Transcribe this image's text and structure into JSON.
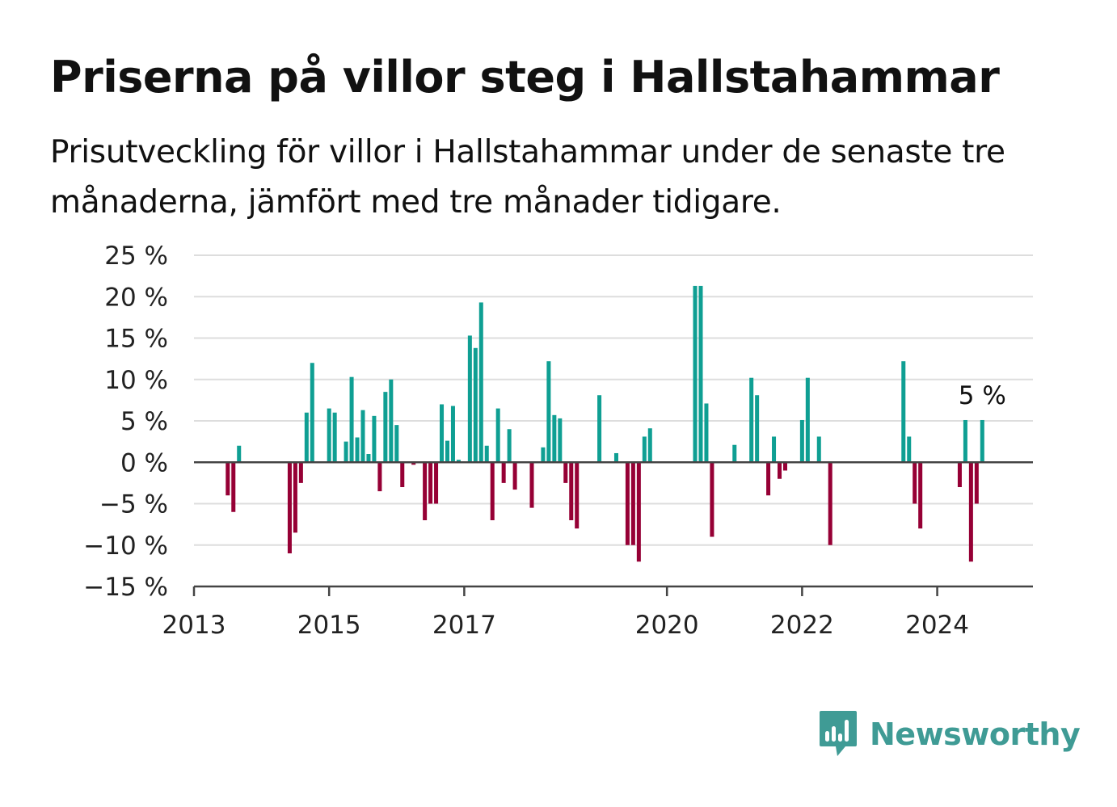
{
  "title": "Priserna på villor steg i Hallstahammar",
  "subtitle": "Prisutveckling för villor i Hallstahammar under de senaste tre månaderna, jämfört med tre månader tidigare.",
  "brand": {
    "name": "Newsworthy",
    "color": "#3f9b95",
    "icon": "bar-chart-speech-bubble-icon"
  },
  "colors": {
    "positive": "#0f9f93",
    "negative": "#960035",
    "grid": "#dddddd",
    "axis": "#444444"
  },
  "chart_data": {
    "type": "bar",
    "ylim": [
      -15,
      25
    ],
    "yticks": [
      -15,
      -10,
      -5,
      0,
      5,
      10,
      15,
      20,
      25
    ],
    "ytick_labels": [
      "−15 %",
      "−10 %",
      "−5 %",
      "0 %",
      "5 %",
      "10 %",
      "15 %",
      "20 %",
      "25 %"
    ],
    "xlim": [
      "2013-01",
      "2025-06"
    ],
    "xticks": [
      "2013-01",
      "2015-01",
      "2017-01",
      "2020-01",
      "2022-01",
      "2024-01"
    ],
    "xtick_labels": [
      "2013",
      "2015",
      "2017",
      "2020",
      "2022",
      "2024"
    ],
    "grid": true,
    "x": [
      "2013-07",
      "2013-08",
      "2013-09",
      "2014-06",
      "2014-07",
      "2014-08",
      "2014-09",
      "2014-10",
      "2015-01",
      "2015-02",
      "2015-04",
      "2015-05",
      "2015-06",
      "2015-07",
      "2015-08",
      "2015-09",
      "2015-10",
      "2015-11",
      "2015-12",
      "2016-01",
      "2016-02",
      "2016-04",
      "2016-06",
      "2016-07",
      "2016-08",
      "2016-09",
      "2016-10",
      "2016-11",
      "2016-12",
      "2017-02",
      "2017-03",
      "2017-04",
      "2017-05",
      "2017-06",
      "2017-07",
      "2017-08",
      "2017-09",
      "2017-10",
      "2018-01",
      "2018-03",
      "2018-04",
      "2018-05",
      "2018-06",
      "2018-07",
      "2018-08",
      "2018-09",
      "2019-01",
      "2019-04",
      "2019-06",
      "2019-07",
      "2019-08",
      "2019-09",
      "2019-10",
      "2020-06",
      "2020-07",
      "2020-08",
      "2020-09",
      "2021-01",
      "2021-04",
      "2021-05",
      "2021-07",
      "2021-08",
      "2021-09",
      "2021-10",
      "2022-01",
      "2022-02",
      "2022-04",
      "2022-06",
      "2023-07",
      "2023-08",
      "2023-09",
      "2023-10",
      "2024-05",
      "2024-06",
      "2024-07",
      "2024-08",
      "2024-09"
    ],
    "values": [
      -4,
      -6,
      2,
      -11,
      -8.5,
      -2.5,
      6,
      12,
      6.5,
      6,
      2.5,
      10.3,
      3,
      6.3,
      1,
      5.6,
      -3.5,
      8.5,
      10,
      4.5,
      -3,
      -0.3,
      -7,
      -5,
      -5,
      7,
      2.6,
      6.8,
      0.3,
      15.3,
      13.8,
      19.3,
      2,
      -7,
      6.5,
      -2.5,
      4,
      -3.3,
      -5.5,
      1.8,
      12.2,
      5.7,
      5.3,
      -2.5,
      -7,
      -8,
      8.1,
      1.1,
      -10,
      -10,
      -12,
      3.1,
      4.1,
      21.3,
      21.3,
      7.1,
      -9,
      2.1,
      10.2,
      8.1,
      -4,
      3.1,
      -2,
      -1,
      5.1,
      10.2,
      3.1,
      -10,
      12.2,
      3.1,
      -5,
      -8,
      -3,
      5.1,
      -12,
      -5,
      5.1
    ],
    "annotation": {
      "text": "5 %",
      "x": "2024-09",
      "y": 5.1
    }
  }
}
